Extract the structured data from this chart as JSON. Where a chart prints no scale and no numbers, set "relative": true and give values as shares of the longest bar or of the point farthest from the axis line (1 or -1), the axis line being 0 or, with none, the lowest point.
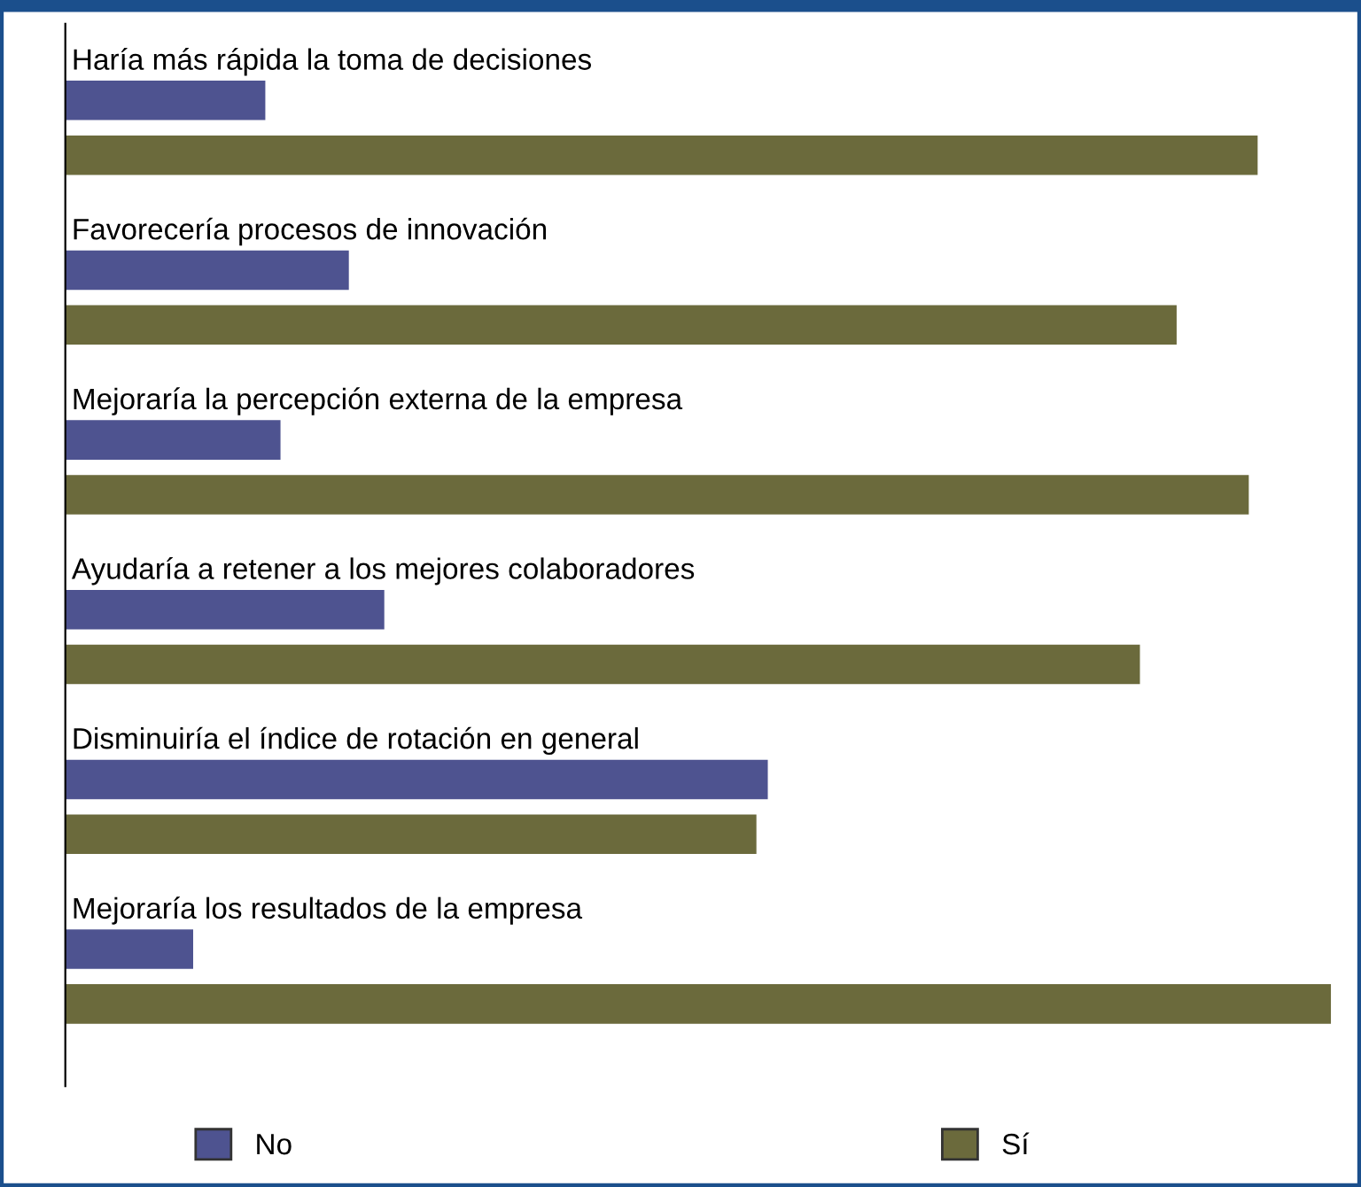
{
  "chart_data": {
    "type": "bar",
    "orientation": "horizontal",
    "relative": true,
    "legend": "bottom",
    "categories": [
      "Haría más rápida la toma de decisiones",
      "Favorecería procesos de innovación",
      "Mejoraría la percepción externa de la empresa",
      "Ayudaría a retener a los mejores colaboradores",
      "Disminuiría el índice de rotación en general",
      "Mejoraría los resultados de la empresa"
    ],
    "series": [
      {
        "name": "No",
        "color": "#4e5390",
        "values": [
          0.158,
          0.224,
          0.17,
          0.252,
          0.555,
          0.101
        ]
      },
      {
        "name": "Sí",
        "color": "#6b6a3c",
        "values": [
          0.942,
          0.878,
          0.935,
          0.849,
          0.546,
          1
        ]
      }
    ]
  }
}
